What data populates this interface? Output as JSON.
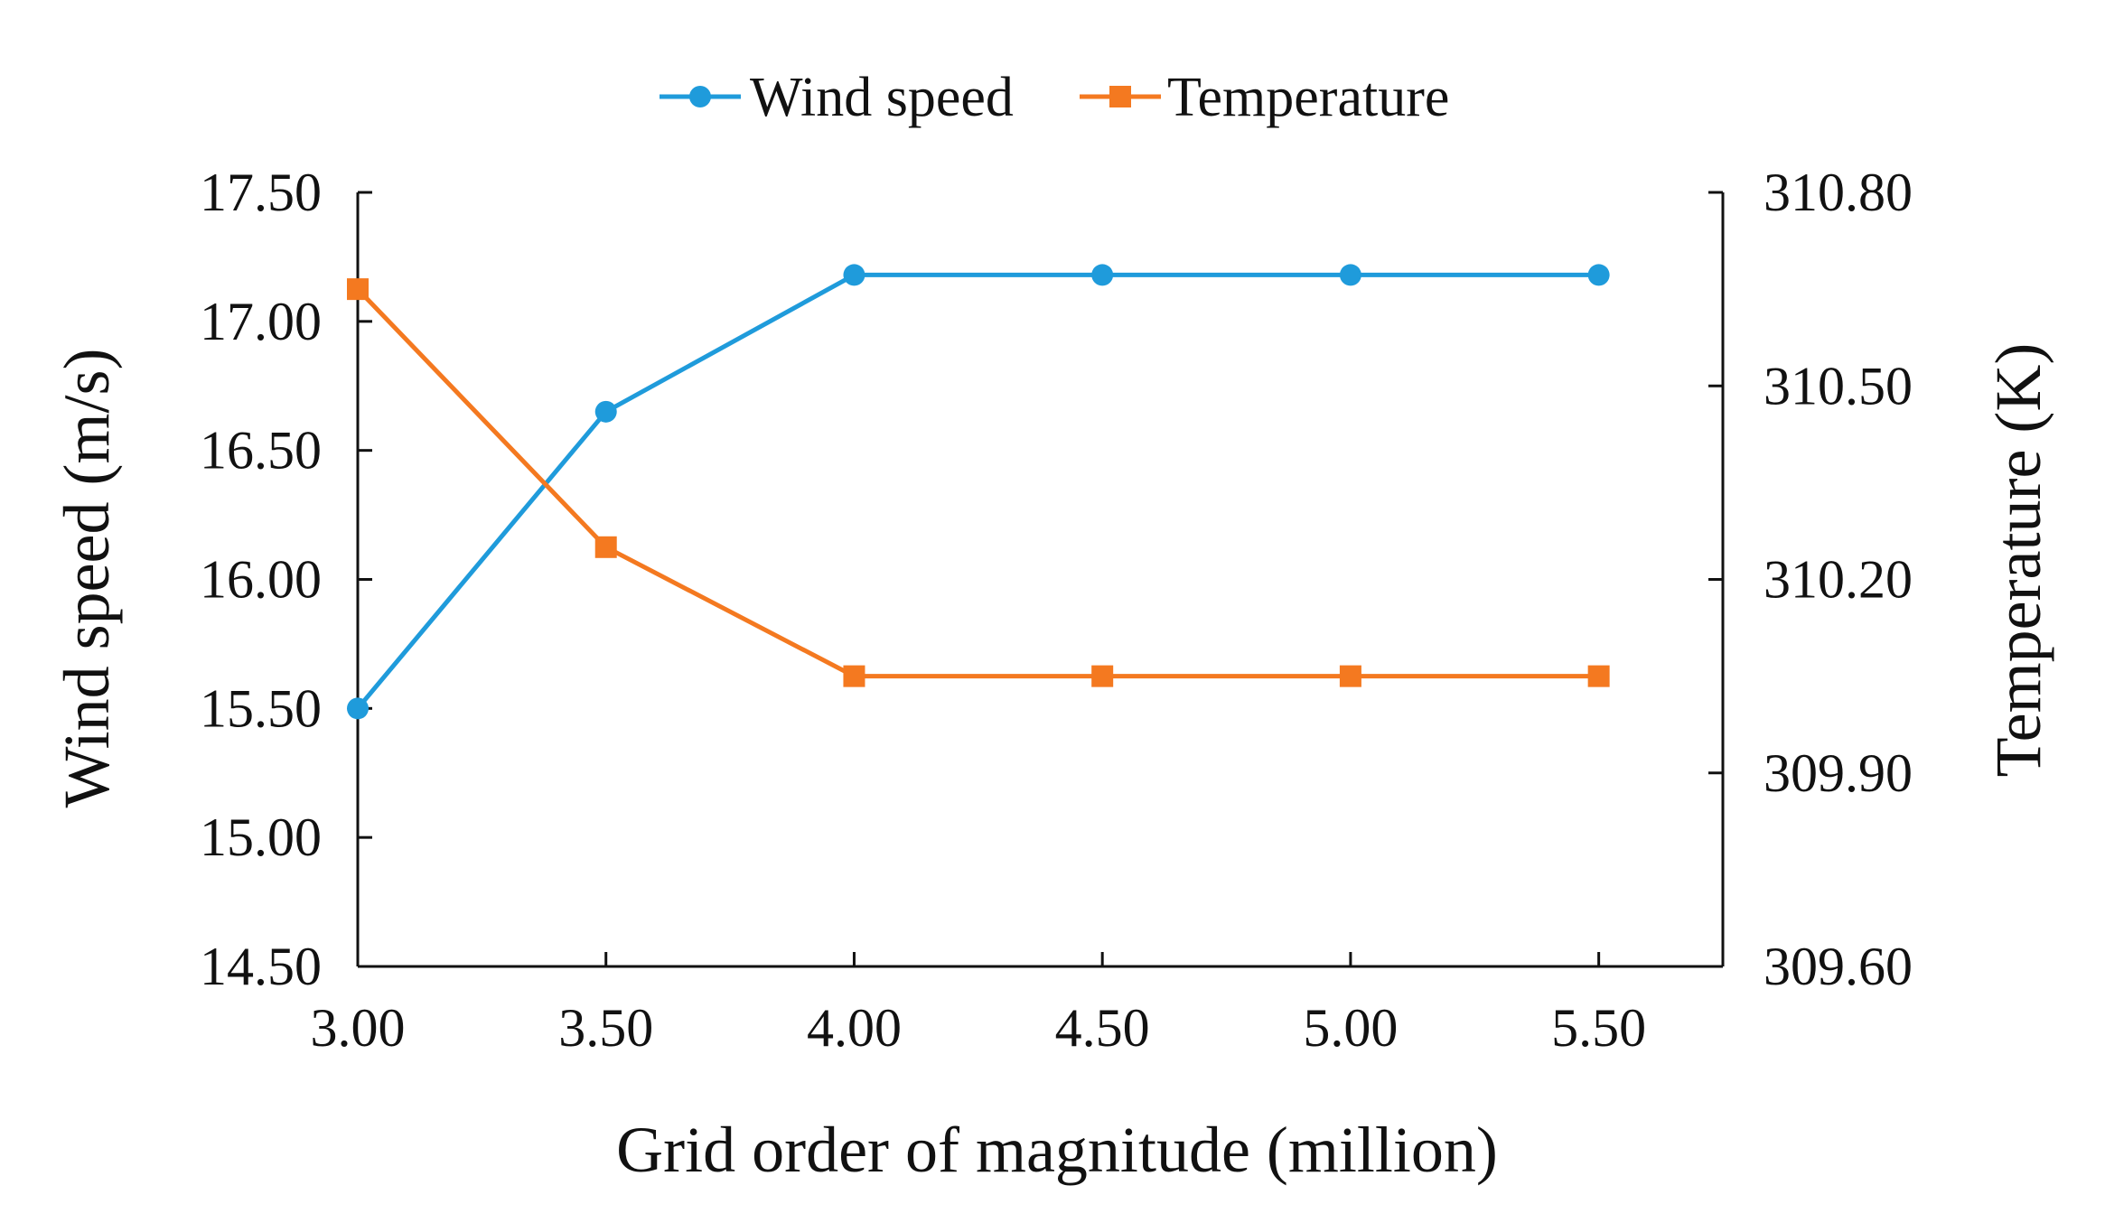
{
  "chart_data": {
    "type": "line",
    "title": "",
    "x": [
      3.0,
      3.5,
      4.0,
      4.5,
      5.0,
      5.5
    ],
    "x_tick_labels": [
      "3.00",
      "3.50",
      "4.00",
      "4.50",
      "5.00",
      "5.50"
    ],
    "xlabel": "Grid order of magnitude (million)",
    "xlim": [
      3.0,
      5.75
    ],
    "ylabel_left": "Wind speed (m/s)",
    "ylim_left": [
      14.5,
      17.5
    ],
    "y_left_ticks": [
      14.5,
      15.0,
      15.5,
      16.0,
      16.5,
      17.0,
      17.5
    ],
    "y_left_tick_labels": [
      "14.50",
      "15.00",
      "15.50",
      "16.00",
      "16.50",
      "17.00",
      "17.50"
    ],
    "ylabel_right": "Temperature (K)",
    "ylim_right": [
      309.6,
      310.8
    ],
    "y_right_ticks": [
      309.6,
      309.9,
      310.2,
      310.5,
      310.8
    ],
    "y_right_tick_labels": [
      "309.60",
      "309.90",
      "310.20",
      "310.50",
      "310.80"
    ],
    "grid": false,
    "legend_position": "top-center",
    "series": [
      {
        "name": "Wind speed",
        "axis": "left",
        "color": "#1F9BDB",
        "marker": "circle",
        "values": [
          15.5,
          16.65,
          17.18,
          17.18,
          17.18,
          17.18
        ]
      },
      {
        "name": "Temperature",
        "axis": "right",
        "color": "#F47920",
        "marker": "square",
        "values": [
          310.65,
          310.25,
          310.05,
          310.05,
          310.05,
          310.05
        ]
      }
    ]
  }
}
